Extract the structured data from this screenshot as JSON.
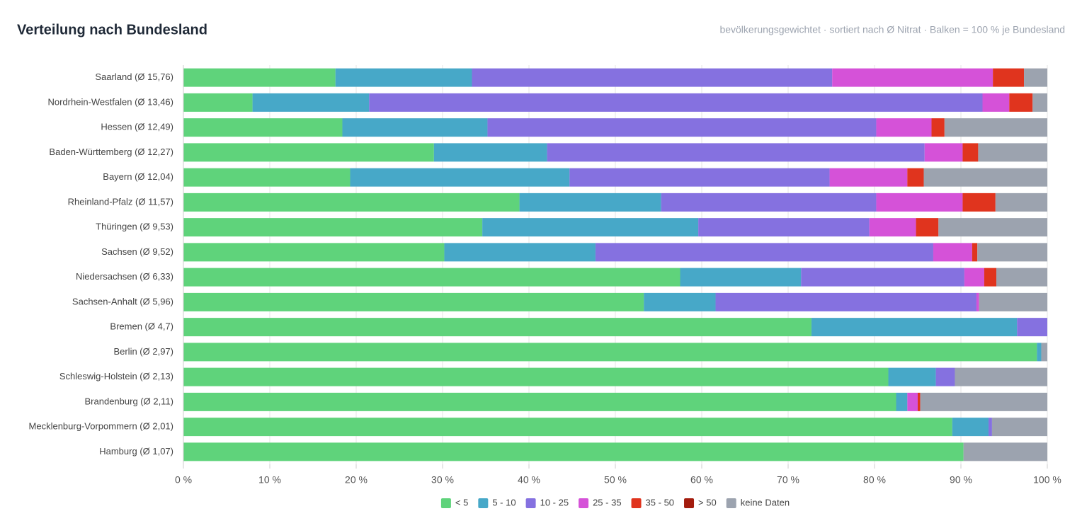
{
  "chart_data": {
    "type": "stacked-bar-horizontal",
    "title": "Verteilung nach Bundesland",
    "subtitle": "bevölkerungsgewichtet · sortiert nach Ø Nitrat · Balken = 100 % je Bundesland",
    "categories": [
      "Saarland (Ø 15,76)",
      "Nordrhein-Westfalen (Ø 13,46)",
      "Hessen (Ø 12,49)",
      "Baden-Württemberg (Ø 12,27)",
      "Bayern (Ø 12,04)",
      "Rheinland-Pfalz (Ø 11,57)",
      "Thüringen (Ø 9,53)",
      "Sachsen (Ø 9,52)",
      "Niedersachsen (Ø 6,33)",
      "Sachsen-Anhalt (Ø 5,96)",
      "Bremen (Ø 4,7)",
      "Berlin (Ø 2,97)",
      "Schleswig-Holstein (Ø 2,13)",
      "Brandenburg (Ø 2,11)",
      "Mecklenburg-Vorpommern (Ø 2,01)",
      "Hamburg (Ø 1,07)"
    ],
    "series": [
      {
        "name": "< 5",
        "color": "#5fd37b",
        "values": [
          17.6,
          8.0,
          18.4,
          29.0,
          19.3,
          38.9,
          34.6,
          30.2,
          57.5,
          53.3,
          72.7,
          98.8,
          81.6,
          82.5,
          89.0,
          90.3
        ]
      },
      {
        "name": "5 - 10",
        "color": "#47a8c8",
        "values": [
          15.8,
          13.5,
          16.8,
          13.1,
          25.4,
          16.4,
          25.0,
          17.5,
          14.0,
          8.3,
          23.8,
          0.5,
          5.5,
          1.3,
          4.2,
          0
        ]
      },
      {
        "name": "10 - 25",
        "color": "#8571e0",
        "values": [
          41.7,
          71.0,
          45.0,
          43.7,
          30.1,
          24.9,
          19.8,
          39.1,
          18.9,
          30.2,
          3.5,
          0,
          2.2,
          0,
          0.4,
          0
        ]
      },
      {
        "name": "25 - 35",
        "color": "#d552d8",
        "values": [
          18.6,
          3.1,
          6.4,
          4.4,
          9.0,
          10.0,
          5.4,
          4.5,
          2.3,
          0.3,
          0,
          0,
          0,
          1.2,
          0,
          0
        ]
      },
      {
        "name": "35 - 50",
        "color": "#e0341e",
        "values": [
          3.6,
          2.7,
          1.5,
          1.8,
          1.9,
          3.8,
          2.6,
          0.6,
          1.4,
          0,
          0,
          0,
          0,
          0.3,
          0,
          0
        ]
      },
      {
        "name": "> 50",
        "color": "#a31c0d",
        "values": [
          0,
          0,
          0,
          0,
          0,
          0,
          0,
          0,
          0,
          0,
          0,
          0,
          0,
          0,
          0,
          0
        ]
      },
      {
        "name": "keine Daten",
        "color": "#9ca3af",
        "values": [
          2.7,
          1.7,
          11.9,
          8.0,
          14.3,
          6.0,
          12.6,
          8.1,
          5.9,
          7.9,
          0,
          0.7,
          10.7,
          14.7,
          6.4,
          9.7
        ]
      }
    ],
    "xlim": [
      0,
      100
    ],
    "xticks": [
      {
        "value": 0,
        "label": "0 %"
      },
      {
        "value": 10,
        "label": "10 %"
      },
      {
        "value": 20,
        "label": "20 %"
      },
      {
        "value": 30,
        "label": "30 %"
      },
      {
        "value": 40,
        "label": "40 %"
      },
      {
        "value": 50,
        "label": "50 %"
      },
      {
        "value": 60,
        "label": "60 %"
      },
      {
        "value": 70,
        "label": "70 %"
      },
      {
        "value": 80,
        "label": "80 %"
      },
      {
        "value": 90,
        "label": "90 %"
      },
      {
        "value": 100,
        "label": "100 %"
      }
    ],
    "grid": true
  }
}
